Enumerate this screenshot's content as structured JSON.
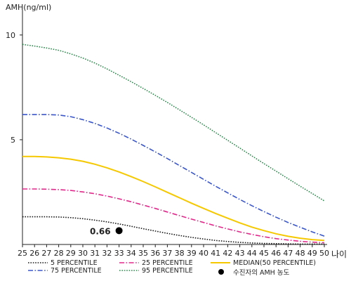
{
  "chart_data": {
    "type": "line",
    "title": "",
    "ylabel": "AMH(ng/ml)",
    "xlabel": "나이",
    "x": [
      25,
      26,
      27,
      28,
      29,
      30,
      31,
      32,
      33,
      34,
      35,
      36,
      37,
      38,
      39,
      40,
      41,
      42,
      43,
      44,
      45,
      46,
      47,
      48,
      49,
      50
    ],
    "xlim": [
      25,
      50
    ],
    "ylim": [
      0,
      11
    ],
    "yticks": [
      5,
      10
    ],
    "grid": false,
    "legend": "bottom",
    "series": [
      {
        "name": "5 PERCENTILE",
        "color": "#1a1a1a",
        "dash": "dotted",
        "values": [
          1.32,
          1.32,
          1.32,
          1.31,
          1.28,
          1.23,
          1.16,
          1.08,
          0.98,
          0.87,
          0.75,
          0.64,
          0.53,
          0.43,
          0.34,
          0.26,
          0.19,
          0.14,
          0.1,
          0.07,
          0.05,
          0.04,
          0.03,
          0.02,
          0.02,
          0.02
        ]
      },
      {
        "name": "25 PERCENTILE",
        "color": "#e0298a",
        "dash": "dashdot",
        "values": [
          2.65,
          2.65,
          2.64,
          2.62,
          2.58,
          2.51,
          2.42,
          2.31,
          2.18,
          2.04,
          1.88,
          1.72,
          1.55,
          1.38,
          1.21,
          1.05,
          0.89,
          0.74,
          0.6,
          0.48,
          0.37,
          0.28,
          0.21,
          0.15,
          0.11,
          0.08
        ]
      },
      {
        "name": "MEDIAN(50 PERCENTILE)",
        "color": "#f5c800",
        "dash": "solid",
        "values": [
          4.2,
          4.2,
          4.18,
          4.14,
          4.07,
          3.97,
          3.83,
          3.66,
          3.46,
          3.24,
          3.0,
          2.75,
          2.49,
          2.23,
          1.97,
          1.72,
          1.48,
          1.25,
          1.03,
          0.83,
          0.66,
          0.51,
          0.39,
          0.3,
          0.23,
          0.19
        ]
      },
      {
        "name": "75 PERCENTILE",
        "color": "#3a56c9",
        "dash": "dashdot",
        "values": [
          6.2,
          6.2,
          6.2,
          6.18,
          6.1,
          5.96,
          5.78,
          5.56,
          5.31,
          5.03,
          4.73,
          4.42,
          4.1,
          3.77,
          3.44,
          3.11,
          2.78,
          2.46,
          2.15,
          1.85,
          1.57,
          1.3,
          1.05,
          0.82,
          0.6,
          0.4
        ]
      },
      {
        "name": "95 PERCENTILE",
        "color": "#2f8a4e",
        "dash": "dotted",
        "values": [
          9.55,
          9.47,
          9.38,
          9.27,
          9.1,
          8.9,
          8.66,
          8.38,
          8.08,
          7.77,
          7.45,
          7.12,
          6.78,
          6.43,
          6.07,
          5.71,
          5.34,
          4.97,
          4.6,
          4.23,
          3.86,
          3.5,
          3.14,
          2.78,
          2.43,
          2.08
        ]
      }
    ],
    "marker": {
      "label": "수진자의 AMH 농도",
      "x": 33,
      "y": 0.66,
      "annotation": "0.66",
      "color": "#000000"
    }
  }
}
